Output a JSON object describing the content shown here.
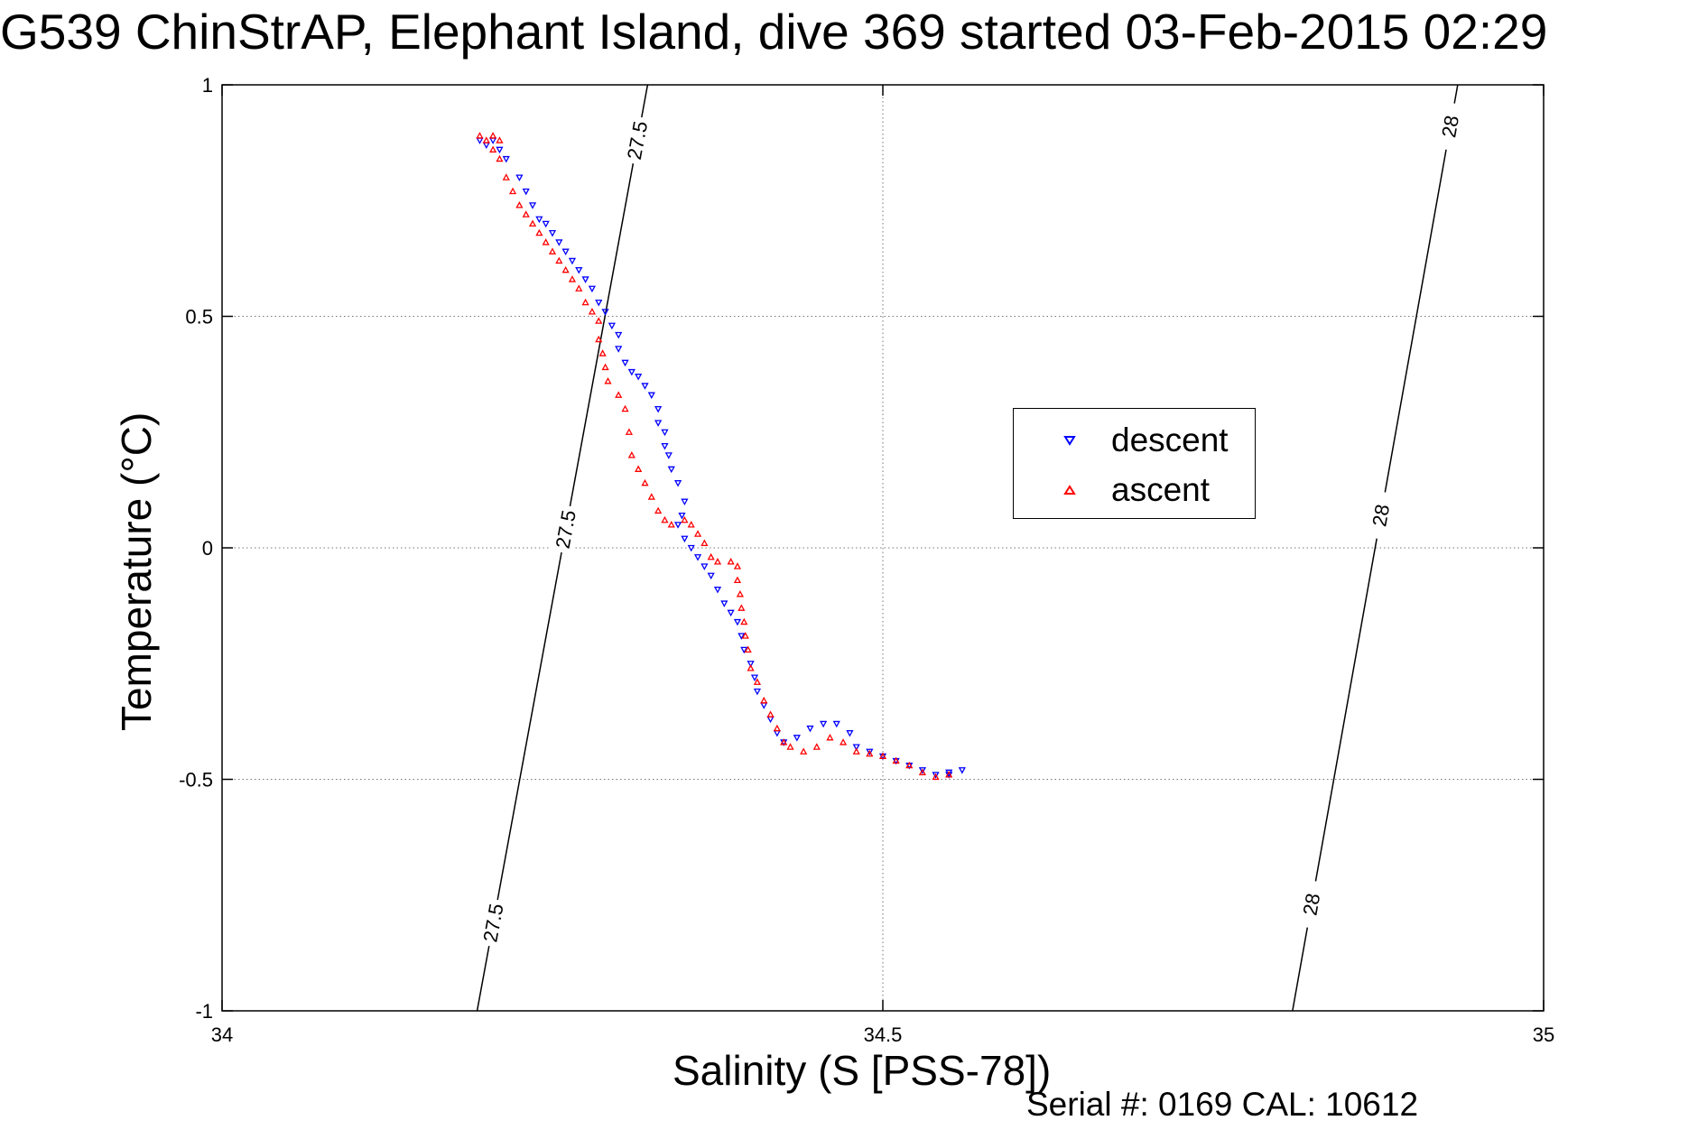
{
  "title": "G539 ChinStrAP, Elephant Island, dive 369 started 03-Feb-2015 02:29",
  "footer": "Serial #: 0169 CAL: 10612",
  "chart_data": {
    "type": "scatter",
    "title": "G539 ChinStrAP, Elephant Island, dive 369 started 03-Feb-2015 02:29",
    "xlabel": "Salinity (S [PSS-78])",
    "ylabel": "Temperature (°C)",
    "xlim": [
      34,
      35
    ],
    "ylim": [
      -1,
      1
    ],
    "xticks": [
      34,
      34.5,
      35
    ],
    "xtick_labels": [
      "34",
      "34.5",
      "35"
    ],
    "yticks": [
      -1,
      -0.5,
      0,
      0.5,
      1
    ],
    "ytick_labels": [
      "-1",
      "-0.5",
      "0",
      "0.5",
      "1"
    ],
    "grid": true,
    "legend_position": "right-middle",
    "isopycnals": [
      {
        "label": "27.5",
        "x_at_ymin": 34.193,
        "x_at_ymax": 34.322,
        "label_y": [
          0.88,
          0.04,
          -0.81
        ]
      },
      {
        "label": "28",
        "x_at_ymin": 34.81,
        "x_at_ymax": 34.935,
        "label_y": [
          0.91,
          0.07,
          -0.77
        ]
      }
    ],
    "series": [
      {
        "name": "descent",
        "marker": "triangle-down",
        "color": "#0000ff",
        "points": [
          [
            34.195,
            0.88
          ],
          [
            34.2,
            0.87
          ],
          [
            34.205,
            0.88
          ],
          [
            34.21,
            0.86
          ],
          [
            34.215,
            0.84
          ],
          [
            34.225,
            0.8
          ],
          [
            34.23,
            0.77
          ],
          [
            34.235,
            0.74
          ],
          [
            34.24,
            0.71
          ],
          [
            34.245,
            0.7
          ],
          [
            34.25,
            0.68
          ],
          [
            34.255,
            0.66
          ],
          [
            34.26,
            0.64
          ],
          [
            34.265,
            0.62
          ],
          [
            34.27,
            0.6
          ],
          [
            34.275,
            0.58
          ],
          [
            34.28,
            0.56
          ],
          [
            34.285,
            0.53
          ],
          [
            34.29,
            0.51
          ],
          [
            34.295,
            0.48
          ],
          [
            34.3,
            0.46
          ],
          [
            34.3,
            0.43
          ],
          [
            34.305,
            0.4
          ],
          [
            34.31,
            0.38
          ],
          [
            34.315,
            0.37
          ],
          [
            34.32,
            0.35
          ],
          [
            34.325,
            0.33
          ],
          [
            34.33,
            0.3
          ],
          [
            34.33,
            0.27
          ],
          [
            34.335,
            0.25
          ],
          [
            34.335,
            0.22
          ],
          [
            34.338,
            0.2
          ],
          [
            34.34,
            0.17
          ],
          [
            34.345,
            0.14
          ],
          [
            34.35,
            0.1
          ],
          [
            34.348,
            0.07
          ],
          [
            34.345,
            0.05
          ],
          [
            34.35,
            0.02
          ],
          [
            34.355,
            0
          ],
          [
            34.36,
            -0.02
          ],
          [
            34.365,
            -0.04
          ],
          [
            34.37,
            -0.06
          ],
          [
            34.375,
            -0.09
          ],
          [
            34.38,
            -0.12
          ],
          [
            34.385,
            -0.14
          ],
          [
            34.39,
            -0.16
          ],
          [
            34.393,
            -0.19
          ],
          [
            34.395,
            -0.22
          ],
          [
            34.4,
            -0.25
          ],
          [
            34.403,
            -0.28
          ],
          [
            34.405,
            -0.31
          ],
          [
            34.41,
            -0.34
          ],
          [
            34.415,
            -0.37
          ],
          [
            34.42,
            -0.4
          ],
          [
            34.425,
            -0.42
          ],
          [
            34.435,
            -0.41
          ],
          [
            34.445,
            -0.39
          ],
          [
            34.455,
            -0.38
          ],
          [
            34.465,
            -0.38
          ],
          [
            34.475,
            -0.4
          ],
          [
            34.48,
            -0.43
          ],
          [
            34.49,
            -0.44
          ],
          [
            34.5,
            -0.45
          ],
          [
            34.51,
            -0.46
          ],
          [
            34.52,
            -0.47
          ],
          [
            34.53,
            -0.48
          ],
          [
            34.54,
            -0.49
          ],
          [
            34.55,
            -0.49
          ],
          [
            34.56,
            -0.48
          ],
          [
            34.55,
            -0.485
          ]
        ]
      },
      {
        "name": "ascent",
        "marker": "triangle-up",
        "color": "#ff0000",
        "points": [
          [
            34.195,
            0.89
          ],
          [
            34.2,
            0.88
          ],
          [
            34.205,
            0.89
          ],
          [
            34.21,
            0.88
          ],
          [
            34.205,
            0.86
          ],
          [
            34.21,
            0.84
          ],
          [
            34.215,
            0.8
          ],
          [
            34.22,
            0.77
          ],
          [
            34.225,
            0.74
          ],
          [
            34.23,
            0.72
          ],
          [
            34.235,
            0.7
          ],
          [
            34.24,
            0.68
          ],
          [
            34.245,
            0.66
          ],
          [
            34.25,
            0.64
          ],
          [
            34.255,
            0.62
          ],
          [
            34.26,
            0.6
          ],
          [
            34.265,
            0.58
          ],
          [
            34.27,
            0.56
          ],
          [
            34.275,
            0.53
          ],
          [
            34.28,
            0.51
          ],
          [
            34.285,
            0.49
          ],
          [
            34.285,
            0.45
          ],
          [
            34.288,
            0.42
          ],
          [
            34.29,
            0.39
          ],
          [
            34.292,
            0.36
          ],
          [
            34.3,
            0.33
          ],
          [
            34.305,
            0.3
          ],
          [
            34.308,
            0.25
          ],
          [
            34.31,
            0.2
          ],
          [
            34.315,
            0.17
          ],
          [
            34.32,
            0.14
          ],
          [
            34.325,
            0.11
          ],
          [
            34.33,
            0.08
          ],
          [
            34.335,
            0.06
          ],
          [
            34.34,
            0.05
          ],
          [
            34.35,
            0.06
          ],
          [
            34.355,
            0.05
          ],
          [
            34.36,
            0.03
          ],
          [
            34.365,
            0.01
          ],
          [
            34.37,
            -0.02
          ],
          [
            34.375,
            -0.03
          ],
          [
            34.385,
            -0.03
          ],
          [
            34.39,
            -0.04
          ],
          [
            34.39,
            -0.07
          ],
          [
            34.392,
            -0.1
          ],
          [
            34.393,
            -0.13
          ],
          [
            34.395,
            -0.16
          ],
          [
            34.396,
            -0.19
          ],
          [
            34.398,
            -0.22
          ],
          [
            34.4,
            -0.26
          ],
          [
            34.405,
            -0.29
          ],
          [
            34.41,
            -0.33
          ],
          [
            34.415,
            -0.36
          ],
          [
            34.42,
            -0.39
          ],
          [
            34.425,
            -0.42
          ],
          [
            34.43,
            -0.43
          ],
          [
            34.44,
            -0.44
          ],
          [
            34.45,
            -0.43
          ],
          [
            34.46,
            -0.41
          ],
          [
            34.47,
            -0.42
          ],
          [
            34.48,
            -0.44
          ],
          [
            34.49,
            -0.445
          ],
          [
            34.5,
            -0.45
          ],
          [
            34.51,
            -0.46
          ],
          [
            34.52,
            -0.47
          ],
          [
            34.53,
            -0.485
          ],
          [
            34.54,
            -0.495
          ],
          [
            34.55,
            -0.49
          ]
        ]
      }
    ]
  }
}
